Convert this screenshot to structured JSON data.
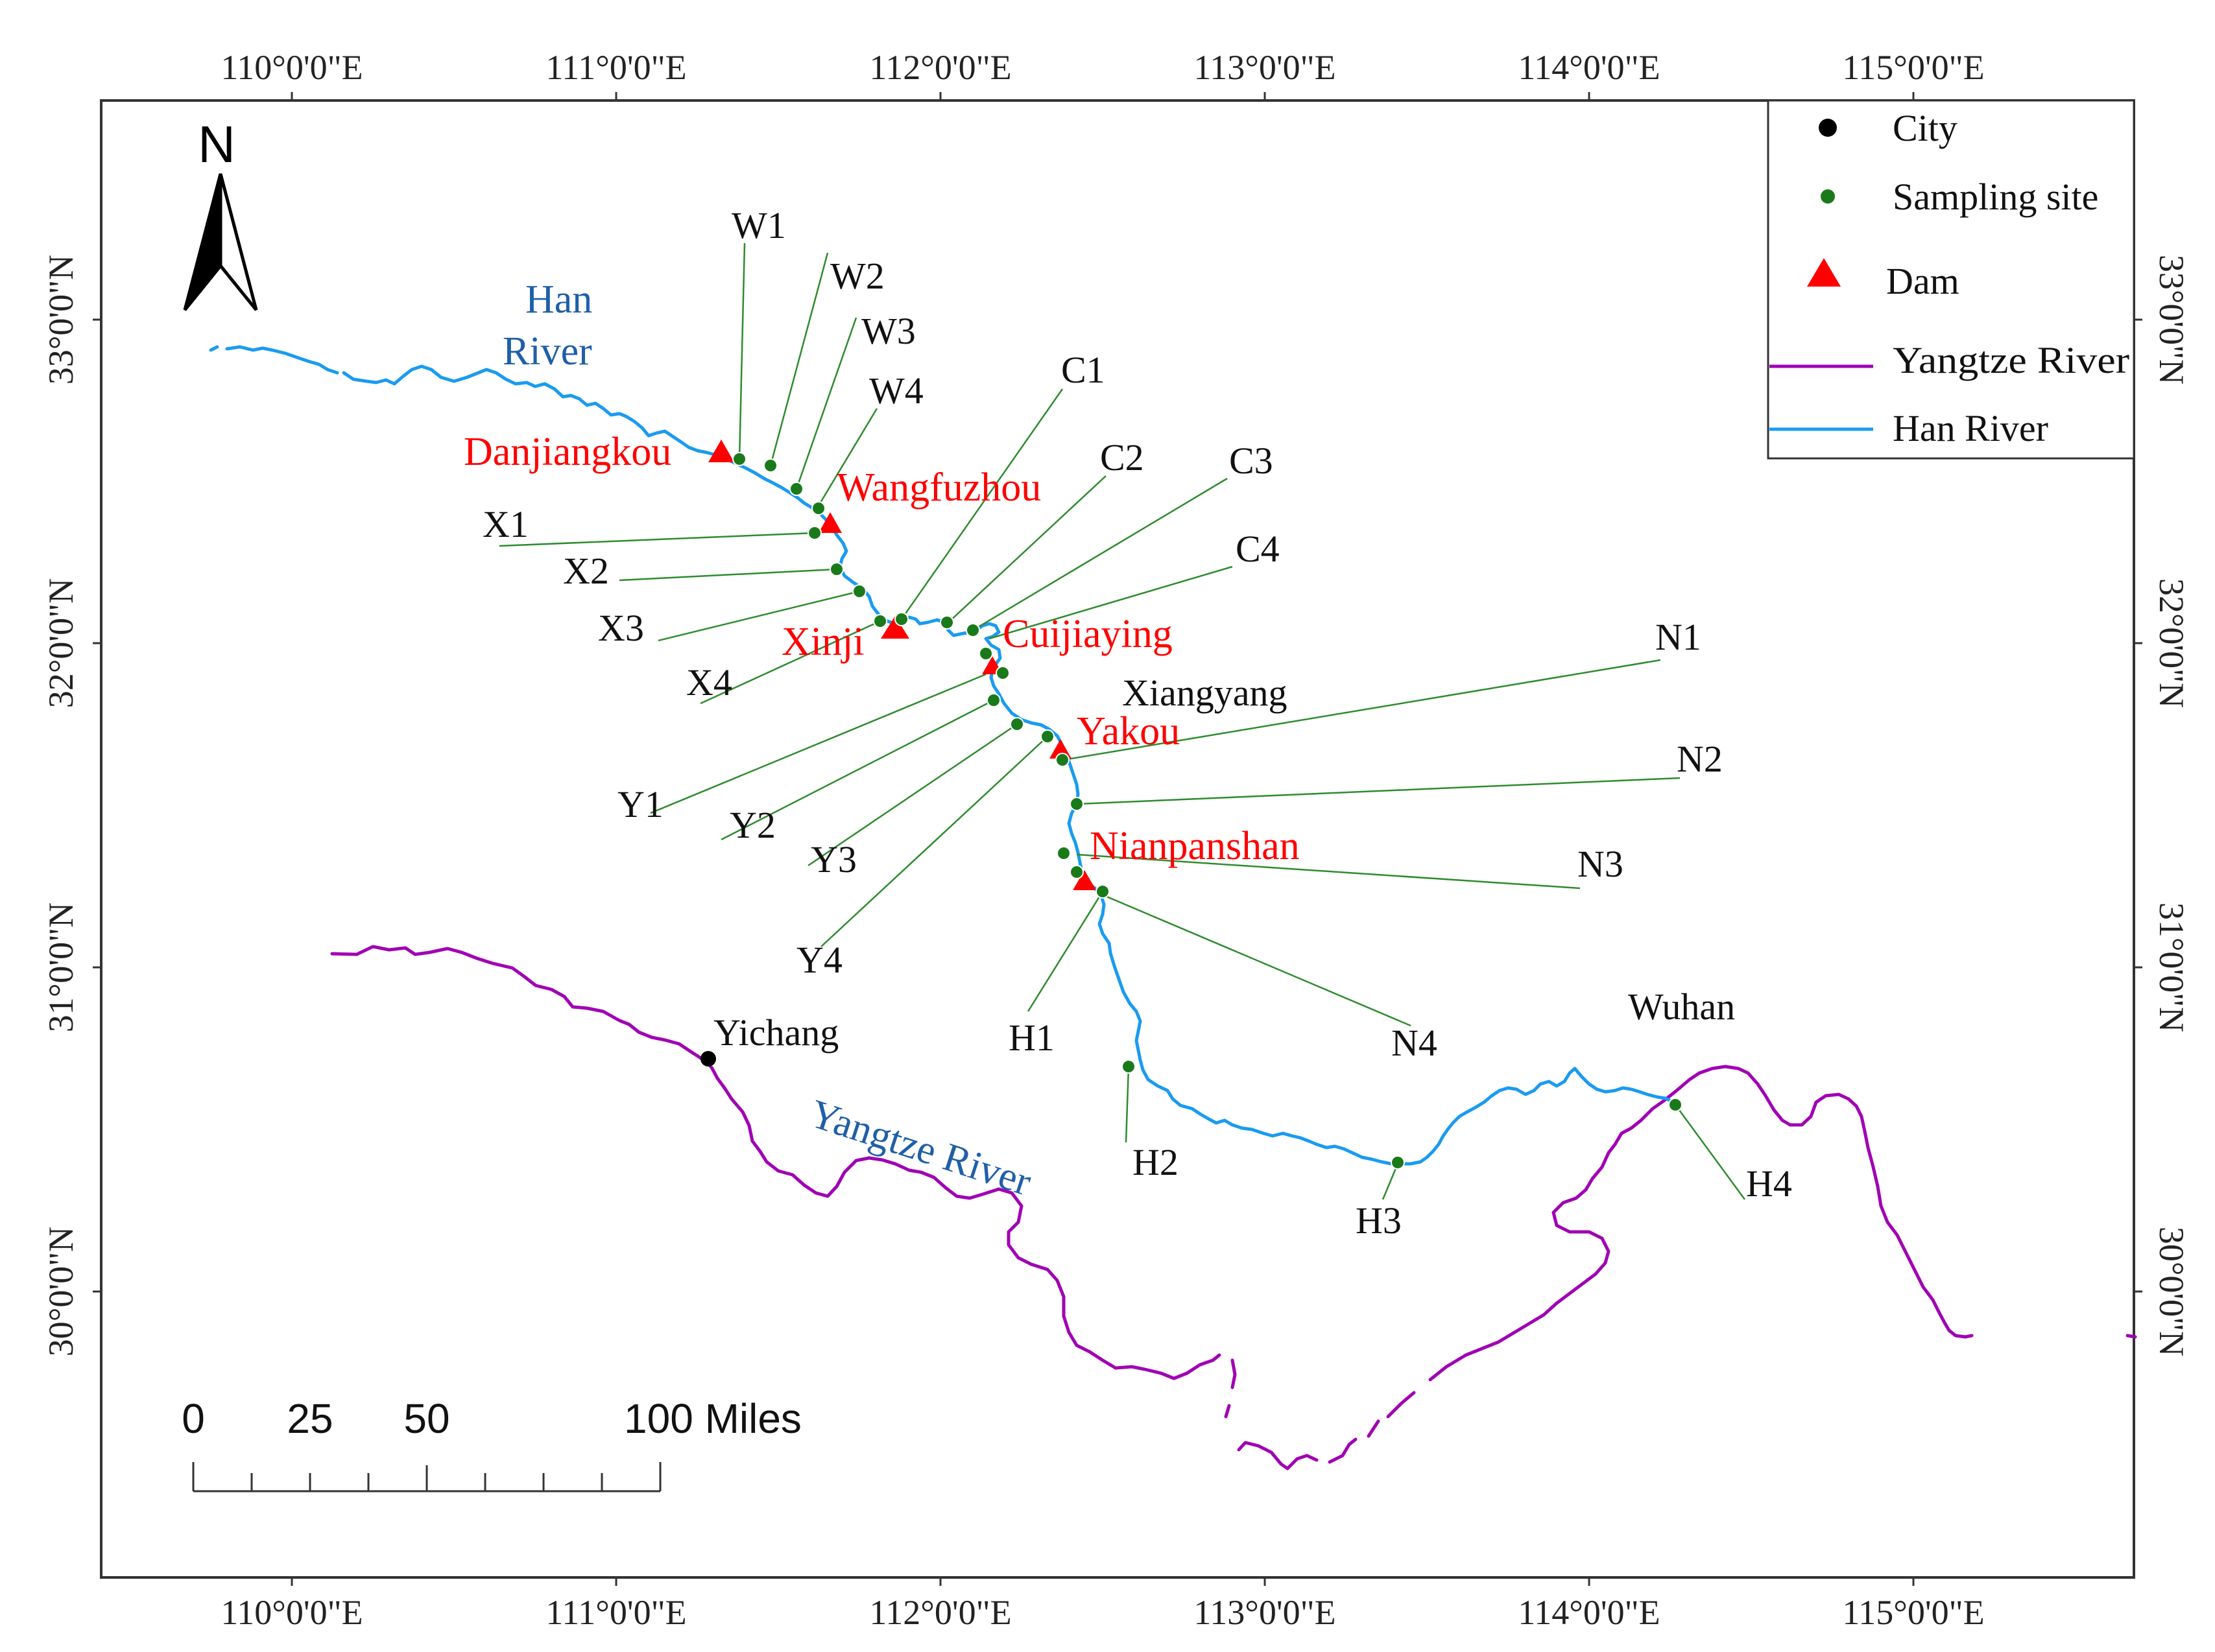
{
  "colors": {
    "yangtze": "#a000b4",
    "han": "#1a9bf0",
    "site": "#1a7a1a",
    "dam": "#ff0000",
    "city": "#000000",
    "leader": "#2e8b2e",
    "dam_label": "#ff0000",
    "river_label": "#1f5fa8",
    "frame": "#333333"
  },
  "axes": {
    "lon_labels": [
      "110°0'0\"E",
      "111°0'0\"E",
      "112°0'0\"E",
      "113°0'0\"E",
      "114°0'0\"E",
      "115°0'0\"E"
    ],
    "lat_labels": [
      "33°0'0\"N",
      "32°0'0\"N",
      "31°0'0\"N",
      "30°0'0\"N"
    ]
  },
  "north_arrow": {
    "label": "N",
    "icon": "north-arrow-icon"
  },
  "legend": {
    "items": [
      {
        "key": "city",
        "label": "City",
        "icon": "city-dot-icon"
      },
      {
        "key": "site",
        "label": "Sampling site",
        "icon": "sampling-dot-icon"
      },
      {
        "key": "dam",
        "label": "Dam",
        "icon": "dam-triangle-icon"
      },
      {
        "key": "yangtze",
        "label": "Yangtze River",
        "icon": "yangtze-line-icon"
      },
      {
        "key": "han",
        "label": "Han River",
        "icon": "han-line-icon"
      }
    ]
  },
  "scale_bar": {
    "labels": [
      "0",
      "25",
      "50",
      "100 Miles"
    ]
  },
  "rivers": {
    "han_label": [
      "Han",
      "River"
    ],
    "yangtze_label": "Yangtze River"
  },
  "cities": [
    {
      "name": "Yichang"
    },
    {
      "name": "Xiangyang"
    },
    {
      "name": "Wuhan"
    }
  ],
  "dams": [
    {
      "name": "Danjiangkou"
    },
    {
      "name": "Wangfuzhou"
    },
    {
      "name": "Xinji"
    },
    {
      "name": "Cuijiaying"
    },
    {
      "name": "Yakou"
    },
    {
      "name": "Nianpanshan"
    }
  ],
  "sites": [
    {
      "id": "W1"
    },
    {
      "id": "W2"
    },
    {
      "id": "W3"
    },
    {
      "id": "W4"
    },
    {
      "id": "X1"
    },
    {
      "id": "X2"
    },
    {
      "id": "X3"
    },
    {
      "id": "X4"
    },
    {
      "id": "C1"
    },
    {
      "id": "C2"
    },
    {
      "id": "C3"
    },
    {
      "id": "C4"
    },
    {
      "id": "Y1"
    },
    {
      "id": "Y2"
    },
    {
      "id": "Y3"
    },
    {
      "id": "Y4"
    },
    {
      "id": "N1"
    },
    {
      "id": "N2"
    },
    {
      "id": "N3"
    },
    {
      "id": "N4"
    },
    {
      "id": "H1"
    },
    {
      "id": "H2"
    },
    {
      "id": "H3"
    },
    {
      "id": "H4"
    }
  ]
}
